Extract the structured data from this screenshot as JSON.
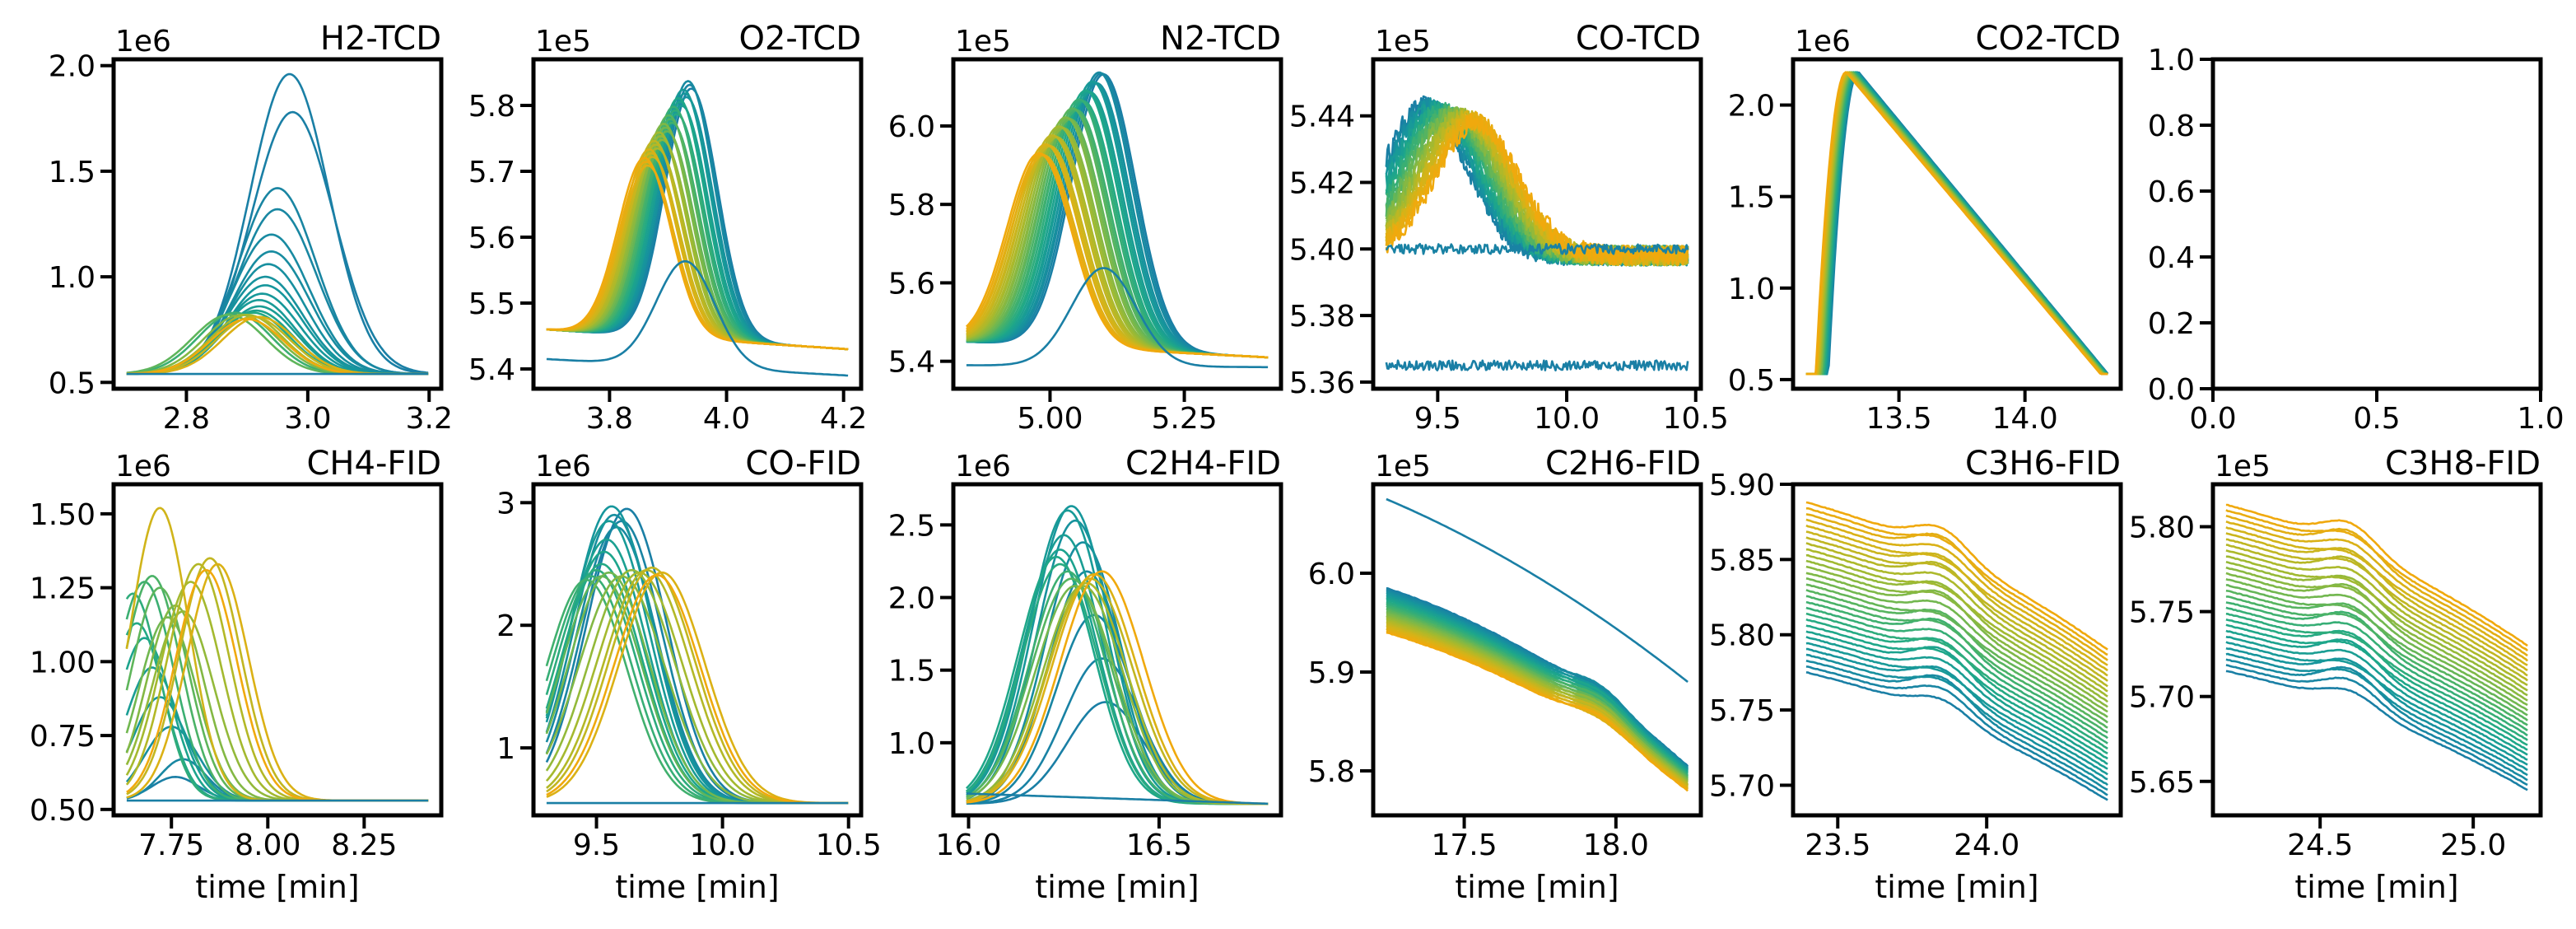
{
  "figure": {
    "colormap": [
      "#1a7fa5",
      "#16969c",
      "#1fa888",
      "#43b16c",
      "#79b84a",
      "#a9b92c",
      "#d2b419",
      "#f0a90d"
    ],
    "spine_color": "#000000",
    "xlabel_common": "time [min]"
  },
  "chart_data": [
    {
      "type": "line",
      "title": "H2-TCD",
      "xlabel": "",
      "ylabel": "",
      "xlim": [
        2.68,
        3.22
      ],
      "ylim": [
        0.47,
        2.03
      ],
      "multiplier": "1e6",
      "xticks": [
        2.8,
        3.0,
        3.2
      ],
      "xtick_labels": [
        "2.8",
        "3.0",
        "3.2"
      ],
      "yticks": [
        0.5,
        1.0,
        1.5,
        2.0
      ],
      "ytick_labels": [
        "0.5",
        "1.0",
        "1.5",
        "2.0"
      ],
      "gen": "peaks",
      "baseline": 0.54,
      "peaks": [
        {
          "c": 0.0,
          "x0": 2.97,
          "A": 1.42,
          "w": 0.065
        },
        {
          "c": 0.0,
          "x0": 2.975,
          "A": 1.24,
          "w": 0.068
        },
        {
          "c": 0.04,
          "x0": 2.95,
          "A": 0.88,
          "w": 0.063
        },
        {
          "c": 0.05,
          "x0": 2.95,
          "A": 0.78,
          "w": 0.064
        },
        {
          "c": 0.07,
          "x0": 2.94,
          "A": 0.66,
          "w": 0.063
        },
        {
          "c": 0.08,
          "x0": 2.94,
          "A": 0.58,
          "w": 0.063
        },
        {
          "c": 0.1,
          "x0": 2.935,
          "A": 0.52,
          "w": 0.062
        },
        {
          "c": 0.12,
          "x0": 2.93,
          "A": 0.46,
          "w": 0.062
        },
        {
          "c": 0.14,
          "x0": 2.93,
          "A": 0.42,
          "w": 0.061
        },
        {
          "c": 0.16,
          "x0": 2.925,
          "A": 0.38,
          "w": 0.061
        },
        {
          "c": 0.18,
          "x0": 2.92,
          "A": 0.35,
          "w": 0.06
        },
        {
          "c": 0.2,
          "x0": 2.92,
          "A": 0.32,
          "w": 0.06
        },
        {
          "c": 0.24,
          "x0": 2.915,
          "A": 0.3,
          "w": 0.06
        },
        {
          "c": 0.3,
          "x0": 2.91,
          "A": 0.29,
          "w": 0.06
        },
        {
          "c": 0.4,
          "x0": 2.88,
          "A": 0.29,
          "w": 0.06
        },
        {
          "c": 0.5,
          "x0": 2.87,
          "A": 0.28,
          "w": 0.06
        },
        {
          "c": 0.6,
          "x0": 2.89,
          "A": 0.28,
          "w": 0.06
        },
        {
          "c": 0.7,
          "x0": 2.9,
          "A": 0.28,
          "w": 0.06
        },
        {
          "c": 0.8,
          "x0": 2.91,
          "A": 0.27,
          "w": 0.06
        },
        {
          "c": 0.9,
          "x0": 2.92,
          "A": 0.27,
          "w": 0.06
        },
        {
          "c": 1.0,
          "x0": 2.9,
          "A": 0.26,
          "w": 0.06
        },
        {
          "c": 0.0,
          "x0": 2.8,
          "A": 0.0,
          "w": 0.06
        }
      ]
    },
    {
      "type": "line",
      "title": "O2-TCD",
      "xlabel": "",
      "ylabel": "",
      "xlim": [
        3.67,
        4.23
      ],
      "ylim": [
        5.37,
        5.87
      ],
      "multiplier": "1e5",
      "xticks": [
        3.8,
        4.0,
        4.2
      ],
      "xtick_labels": [
        "3.8",
        "4.0",
        "4.2"
      ],
      "yticks": [
        5.4,
        5.5,
        5.6,
        5.7,
        5.8
      ],
      "ytick_labels": [
        "5.4",
        "5.5",
        "5.6",
        "5.7",
        "5.8"
      ],
      "gen": "shifted",
      "shifted": {
        "n": 30,
        "x0": [
          3.94,
          3.86
        ],
        "A": [
          0.39,
          0.26
        ],
        "w": 0.045,
        "b0": 5.46,
        "b1": 5.43
      },
      "extra": [
        {
          "c": 0.0,
          "x0": 3.93,
          "A": 0.16,
          "w": 0.05,
          "b0": 5.415,
          "b1": 5.39
        }
      ]
    },
    {
      "type": "line",
      "title": "N2-TCD",
      "xlabel": "",
      "ylabel": "",
      "xlim": [
        4.82,
        5.43
      ],
      "ylim": [
        5.33,
        6.17
      ],
      "multiplier": "1e5",
      "xticks": [
        5.0,
        5.25
      ],
      "xtick_labels": [
        "5.00",
        "5.25"
      ],
      "yticks": [
        5.4,
        5.6,
        5.8,
        6.0
      ],
      "ytick_labels": [
        "5.4",
        "5.6",
        "5.8",
        "6.0"
      ],
      "gen": "shifted",
      "shifted": {
        "n": 30,
        "x0": [
          5.1,
          4.98
        ],
        "A": [
          0.71,
          0.48
        ],
        "w": 0.06,
        "b0": 5.45,
        "b1": 5.41
      },
      "extra": [
        {
          "c": 0.0,
          "x0": 5.1,
          "A": 0.25,
          "w": 0.06,
          "b0": 5.39,
          "b1": 5.385
        }
      ]
    },
    {
      "type": "line",
      "title": "CO-TCD",
      "xlabel": "",
      "ylabel": "",
      "xlim": [
        9.25,
        10.52
      ],
      "ylim": [
        5.358,
        5.457
      ],
      "multiplier": "1e5",
      "xticks": [
        9.5,
        10.0,
        10.5
      ],
      "xtick_labels": [
        "9.5",
        "10.0",
        "10.5"
      ],
      "yticks": [
        5.36,
        5.38,
        5.4,
        5.42,
        5.44
      ],
      "ytick_labels": [
        "5.36",
        "5.38",
        "5.40",
        "5.42",
        "5.44"
      ],
      "gen": "noisy",
      "noisy": {
        "n": 24,
        "x0": [
          9.45,
          9.65
        ],
        "A": [
          0.045,
          0.04
        ],
        "w": 0.16,
        "base": 5.398,
        "noise": 0.003
      },
      "extra": [
        {
          "c": 0.0,
          "x0": 9.5,
          "A": 0.0,
          "w": 0.1,
          "b0": 5.365,
          "b1": 5.365,
          "noise": 0.0015
        },
        {
          "c": 0.02,
          "x0": 9.5,
          "A": 0.0,
          "w": 0.1,
          "b0": 5.4,
          "b1": 5.4,
          "noise": 0.0015
        }
      ]
    },
    {
      "type": "line",
      "title": "CO2-TCD",
      "xlabel": "",
      "ylabel": "",
      "xlim": [
        13.08,
        14.38
      ],
      "ylim": [
        0.45,
        2.25
      ],
      "multiplier": "1e6",
      "xticks": [
        13.5,
        14.0
      ],
      "xtick_labels": [
        "13.5",
        "14.0"
      ],
      "yticks": [
        0.5,
        1.0,
        1.5,
        2.0
      ],
      "ytick_labels": [
        "0.5",
        "1.0",
        "1.5",
        "2.0"
      ],
      "gen": "triangle",
      "triangle": {
        "n": 28,
        "t0": [
          13.22,
          13.17
        ],
        "peak": 2.18,
        "base": 0.53,
        "rise": 0.12,
        "end": [
          14.33,
          14.3
        ]
      }
    },
    {
      "type": "line",
      "title": "",
      "xlabel": "",
      "ylabel": "",
      "xlim": [
        0,
        1
      ],
      "ylim": [
        0,
        1
      ],
      "multiplier": "",
      "xticks": [
        0.0,
        0.5,
        1.0
      ],
      "xtick_labels": [
        "0.0",
        "0.5",
        "1.0"
      ],
      "yticks": [
        0.0,
        0.2,
        0.4,
        0.6,
        0.8,
        1.0
      ],
      "ytick_labels": [
        "0.0",
        "0.2",
        "0.4",
        "0.6",
        "0.8",
        "1.0"
      ],
      "gen": "empty"
    },
    {
      "type": "line",
      "title": "CH4-FID",
      "xlabel": "time [min]",
      "ylabel": "",
      "xlim": [
        7.6,
        8.45
      ],
      "ylim": [
        0.48,
        1.6
      ],
      "multiplier": "1e6",
      "xticks": [
        7.75,
        8.0,
        8.25
      ],
      "xtick_labels": [
        "7.75",
        "8.00",
        "8.25"
      ],
      "yticks": [
        0.5,
        0.75,
        1.0,
        1.25,
        1.5
      ],
      "ytick_labels": [
        "0.50",
        "0.75",
        "1.00",
        "1.25",
        "1.50"
      ],
      "gen": "peaks",
      "baseline": 0.53,
      "peaks": [
        {
          "c": 0.0,
          "x0": 7.76,
          "A": 0.08,
          "w": 0.06
        },
        {
          "c": 0.05,
          "x0": 7.78,
          "A": 0.14,
          "w": 0.06
        },
        {
          "c": 0.1,
          "x0": 7.75,
          "A": 0.25,
          "w": 0.07
        },
        {
          "c": 0.15,
          "x0": 7.72,
          "A": 0.35,
          "w": 0.07
        },
        {
          "c": 0.2,
          "x0": 7.7,
          "A": 0.45,
          "w": 0.07
        },
        {
          "c": 0.25,
          "x0": 7.68,
          "A": 0.55,
          "w": 0.07
        },
        {
          "c": 0.3,
          "x0": 7.66,
          "A": 0.6,
          "w": 0.07
        },
        {
          "c": 0.35,
          "x0": 7.65,
          "A": 0.7,
          "w": 0.07
        },
        {
          "c": 0.4,
          "x0": 7.68,
          "A": 0.74,
          "w": 0.075
        },
        {
          "c": 0.45,
          "x0": 7.7,
          "A": 0.76,
          "w": 0.075
        },
        {
          "c": 0.5,
          "x0": 7.72,
          "A": 0.72,
          "w": 0.075
        },
        {
          "c": 0.55,
          "x0": 7.74,
          "A": 0.62,
          "w": 0.075
        },
        {
          "c": 0.6,
          "x0": 7.76,
          "A": 0.66,
          "w": 0.075
        },
        {
          "c": 0.65,
          "x0": 7.78,
          "A": 0.64,
          "w": 0.08
        },
        {
          "c": 0.7,
          "x0": 7.8,
          "A": 0.74,
          "w": 0.08
        },
        {
          "c": 0.75,
          "x0": 7.82,
          "A": 0.8,
          "w": 0.08
        },
        {
          "c": 0.8,
          "x0": 7.85,
          "A": 0.82,
          "w": 0.08
        },
        {
          "c": 0.85,
          "x0": 7.72,
          "A": 0.99,
          "w": 0.075
        },
        {
          "c": 0.9,
          "x0": 7.87,
          "A": 0.8,
          "w": 0.08
        },
        {
          "c": 1.0,
          "x0": 7.84,
          "A": 0.78,
          "w": 0.08
        },
        {
          "c": 0.0,
          "x0": 7.75,
          "A": 0.0,
          "w": 0.06
        }
      ]
    },
    {
      "type": "line",
      "title": "CO-FID",
      "xlabel": "time [min]",
      "ylabel": "",
      "xlim": [
        9.25,
        10.55
      ],
      "ylim": [
        0.45,
        3.15
      ],
      "multiplier": "1e6",
      "xticks": [
        9.5,
        10.0,
        10.5
      ],
      "xtick_labels": [
        "9.5",
        "10.0",
        "10.5"
      ],
      "yticks": [
        1,
        2,
        3
      ],
      "ytick_labels": [
        "1",
        "2",
        "3"
      ],
      "gen": "peaks",
      "baseline": 0.55,
      "peaks": [
        {
          "c": 0.0,
          "x0": 9.62,
          "A": 2.4,
          "w": 0.16
        },
        {
          "c": 0.03,
          "x0": 9.6,
          "A": 2.3,
          "w": 0.16
        },
        {
          "c": 0.06,
          "x0": 9.58,
          "A": 2.25,
          "w": 0.16
        },
        {
          "c": 0.1,
          "x0": 9.57,
          "A": 2.35,
          "w": 0.16
        },
        {
          "c": 0.14,
          "x0": 9.56,
          "A": 2.42,
          "w": 0.16
        },
        {
          "c": 0.18,
          "x0": 9.55,
          "A": 2.3,
          "w": 0.16
        },
        {
          "c": 0.22,
          "x0": 9.54,
          "A": 2.15,
          "w": 0.16
        },
        {
          "c": 0.26,
          "x0": 9.53,
          "A": 2.05,
          "w": 0.16
        },
        {
          "c": 0.3,
          "x0": 9.52,
          "A": 1.95,
          "w": 0.16
        },
        {
          "c": 0.34,
          "x0": 9.5,
          "A": 1.9,
          "w": 0.16
        },
        {
          "c": 0.38,
          "x0": 9.48,
          "A": 1.85,
          "w": 0.16
        },
        {
          "c": 0.42,
          "x0": 9.46,
          "A": 1.82,
          "w": 0.16
        },
        {
          "c": 0.5,
          "x0": 9.52,
          "A": 1.85,
          "w": 0.16
        },
        {
          "c": 0.55,
          "x0": 9.55,
          "A": 1.88,
          "w": 0.16
        },
        {
          "c": 0.6,
          "x0": 9.6,
          "A": 1.85,
          "w": 0.17
        },
        {
          "c": 0.65,
          "x0": 9.64,
          "A": 1.9,
          "w": 0.17
        },
        {
          "c": 0.7,
          "x0": 9.67,
          "A": 1.88,
          "w": 0.17
        },
        {
          "c": 0.75,
          "x0": 9.7,
          "A": 1.9,
          "w": 0.17
        },
        {
          "c": 0.8,
          "x0": 9.72,
          "A": 1.92,
          "w": 0.17
        },
        {
          "c": 0.9,
          "x0": 9.76,
          "A": 1.88,
          "w": 0.17
        },
        {
          "c": 1.0,
          "x0": 9.74,
          "A": 1.86,
          "w": 0.17
        },
        {
          "c": 0.0,
          "x0": 9.6,
          "A": 0.0,
          "w": 0.15
        }
      ]
    },
    {
      "type": "line",
      "title": "C2H4-FID",
      "xlabel": "time [min]",
      "ylabel": "",
      "xlim": [
        15.96,
        16.82
      ],
      "ylim": [
        0.5,
        2.78
      ],
      "multiplier": "1e6",
      "xticks": [
        16.0,
        16.5
      ],
      "xtick_labels": [
        "16.0",
        "16.5"
      ],
      "yticks": [
        1.0,
        1.5,
        2.0,
        2.5
      ],
      "ytick_labels": [
        "1.0",
        "1.5",
        "2.0",
        "2.5"
      ],
      "gen": "peaks",
      "baseline": 0.58,
      "peaks": [
        {
          "c": 0.0,
          "x0": 16.36,
          "A": 0.7,
          "w": 0.1
        },
        {
          "c": 0.02,
          "x0": 16.35,
          "A": 1.0,
          "w": 0.1
        },
        {
          "c": 0.04,
          "x0": 16.33,
          "A": 1.3,
          "w": 0.1
        },
        {
          "c": 0.06,
          "x0": 16.31,
          "A": 1.6,
          "w": 0.1
        },
        {
          "c": 0.09,
          "x0": 16.3,
          "A": 1.8,
          "w": 0.1
        },
        {
          "c": 0.12,
          "x0": 16.28,
          "A": 1.95,
          "w": 0.1
        },
        {
          "c": 0.15,
          "x0": 16.27,
          "A": 2.05,
          "w": 0.1
        },
        {
          "c": 0.18,
          "x0": 16.26,
          "A": 2.02,
          "w": 0.1
        },
        {
          "c": 0.2,
          "x0": 16.25,
          "A": 1.85,
          "w": 0.1
        },
        {
          "c": 0.24,
          "x0": 16.24,
          "A": 1.75,
          "w": 0.1
        },
        {
          "c": 0.28,
          "x0": 16.23,
          "A": 1.7,
          "w": 0.1
        },
        {
          "c": 0.32,
          "x0": 16.24,
          "A": 1.65,
          "w": 0.1
        },
        {
          "c": 0.4,
          "x0": 16.26,
          "A": 1.6,
          "w": 0.1
        },
        {
          "c": 0.48,
          "x0": 16.27,
          "A": 1.55,
          "w": 0.105
        },
        {
          "c": 0.56,
          "x0": 16.28,
          "A": 1.5,
          "w": 0.105
        },
        {
          "c": 0.64,
          "x0": 16.3,
          "A": 1.5,
          "w": 0.105
        },
        {
          "c": 0.72,
          "x0": 16.31,
          "A": 1.52,
          "w": 0.105
        },
        {
          "c": 0.8,
          "x0": 16.32,
          "A": 1.55,
          "w": 0.11
        },
        {
          "c": 0.9,
          "x0": 16.33,
          "A": 1.58,
          "w": 0.11
        },
        {
          "c": 1.0,
          "x0": 16.35,
          "A": 1.6,
          "w": 0.11
        },
        {
          "c": 0.0,
          "x0": 16.3,
          "A": 0.0,
          "w": 0.1,
          "b0": 0.65,
          "b1": 0.58
        }
      ]
    },
    {
      "type": "line",
      "title": "C2H6-FID",
      "xlabel": "time [min]",
      "ylabel": "",
      "xlim": [
        17.2,
        18.28
      ],
      "ylim": [
        5.755,
        6.09
      ],
      "multiplier": "1e5",
      "xticks": [
        17.5,
        18.0
      ],
      "xtick_labels": [
        "17.5",
        "18.0"
      ],
      "yticks": [
        5.8,
        5.9,
        6.0
      ],
      "ytick_labels": [
        "5.8",
        "5.9",
        "6.0"
      ],
      "gen": "decay",
      "decay": {
        "n": 28,
        "start": [
          5.985,
          5.94
        ],
        "end": [
          5.805,
          5.78
        ],
        "bump": 0.015,
        "bumpx": 17.95
      },
      "extra": [
        {
          "c": 0.0,
          "start": 6.075,
          "end": 5.89,
          "bump": 0.0
        }
      ]
    },
    {
      "type": "line",
      "title": "C3H6-FID",
      "xlabel": "time [min]",
      "ylabel": "",
      "xlim": [
        23.35,
        24.45
      ],
      "ylim": [
        5.68,
        5.9
      ],
      "multiplier": "",
      "xticks": [
        23.5,
        24.0
      ],
      "xtick_labels": [
        "23.5",
        "24.0"
      ],
      "yticks": [
        5.7,
        5.75,
        5.8,
        5.85,
        5.9
      ],
      "ytick_labels": [
        "5.70",
        "5.75",
        "5.80",
        "5.85",
        "5.90"
      ],
      "gen": "decay",
      "decay": {
        "n": 30,
        "start": [
          5.775,
          5.888
        ],
        "end": [
          5.69,
          5.79
        ],
        "bump": 0.018,
        "bumpx": 23.85
      }
    },
    {
      "type": "line",
      "title": "C3H8-FID",
      "xlabel": "time [min]",
      "ylabel": "",
      "xlim": [
        24.15,
        25.22
      ],
      "ylim": [
        5.63,
        5.825
      ],
      "multiplier": "1e5",
      "xticks": [
        24.5,
        25.0
      ],
      "xtick_labels": [
        "24.5",
        "25.0"
      ],
      "yticks": [
        5.65,
        5.7,
        5.75,
        5.8
      ],
      "ytick_labels": [
        "5.65",
        "5.70",
        "5.75",
        "5.80"
      ],
      "gen": "decay",
      "decay": {
        "n": 30,
        "start": [
          5.715,
          5.813
        ],
        "end": [
          5.645,
          5.73
        ],
        "bump": 0.016,
        "bumpx": 24.6
      }
    }
  ]
}
